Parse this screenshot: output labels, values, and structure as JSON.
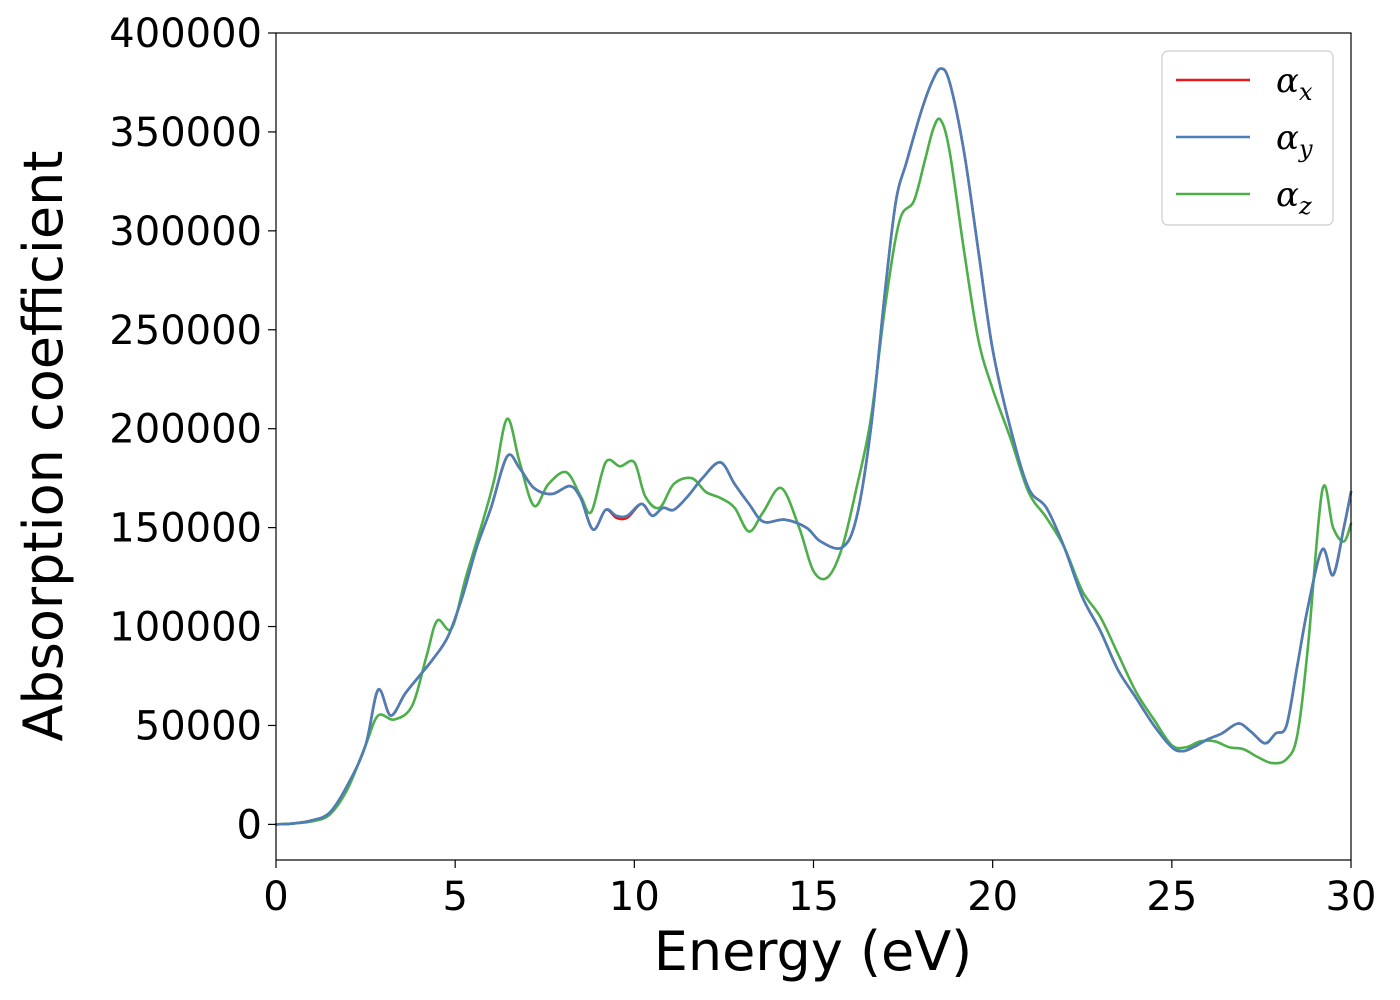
{
  "chart_data": {
    "type": "line",
    "xlabel": "Energy (eV)",
    "ylabel": "Absorption coefficient",
    "xlim": [
      0,
      30
    ],
    "ylim": [
      -18000,
      400000
    ],
    "xticks": [
      "0",
      "5",
      "10",
      "15",
      "20",
      "25",
      "30"
    ],
    "xtick_values": [
      0,
      5,
      10,
      15,
      20,
      25,
      30
    ],
    "yticks": [
      "0",
      "50000",
      "100000",
      "150000",
      "200000",
      "250000",
      "300000",
      "350000",
      "400000"
    ],
    "ytick_values": [
      0,
      50000,
      100000,
      150000,
      200000,
      250000,
      300000,
      350000,
      400000
    ],
    "grid": false,
    "legend_position": "top-right",
    "series": [
      {
        "name": "αx",
        "symbol": "α",
        "subscript": "x",
        "color": "#e41a1c",
        "x": [
          0,
          0.5,
          1,
          1.5,
          2,
          2.5,
          2.85,
          3.2,
          3.6,
          4,
          4.4,
          4.8,
          5.2,
          5.6,
          6,
          6.45,
          6.8,
          7.2,
          7.7,
          8.2,
          8.5,
          8.85,
          9.2,
          9.5,
          9.8,
          10.2,
          10.5,
          10.8,
          11.1,
          11.5,
          11.9,
          12.4,
          12.8,
          13.2,
          13.6,
          14.2,
          14.8,
          15.2,
          15.8,
          16.2,
          16.6,
          17,
          17.3,
          17.6,
          18,
          18.3,
          18.55,
          18.8,
          19.2,
          19.6,
          20,
          20.5,
          21,
          21.5,
          22,
          22.5,
          23,
          23.5,
          24,
          24.5,
          25,
          25.3,
          25.6,
          26,
          26.4,
          26.85,
          27.2,
          27.6,
          27.9,
          28.2,
          28.5,
          28.8,
          29.2,
          29.5,
          29.8,
          30
        ],
        "y": [
          0,
          500,
          2000,
          6000,
          20000,
          40000,
          68000,
          55000,
          66000,
          75000,
          84000,
          95000,
          115000,
          140000,
          160000,
          186000,
          180000,
          170000,
          167000,
          171000,
          165000,
          149000,
          159000,
          155000,
          155000,
          162000,
          156000,
          160000,
          159000,
          166000,
          175000,
          183000,
          172000,
          162000,
          153000,
          154000,
          150000,
          143000,
          140000,
          155000,
          200000,
          270000,
          315000,
          335000,
          360000,
          375000,
          382000,
          375000,
          340000,
          290000,
          240000,
          200000,
          170000,
          160000,
          140000,
          115000,
          98000,
          78000,
          64000,
          50000,
          39000,
          37000,
          39000,
          43000,
          46000,
          51000,
          47000,
          41000,
          46000,
          50000,
          80000,
          110000,
          139000,
          126000,
          150000,
          168000
        ]
      },
      {
        "name": "αy",
        "symbol": "α",
        "subscript": "y",
        "color": "#4a7fb8",
        "x": [
          0,
          0.5,
          1,
          1.5,
          2,
          2.5,
          2.85,
          3.2,
          3.6,
          4,
          4.4,
          4.8,
          5.2,
          5.6,
          6,
          6.45,
          6.8,
          7.2,
          7.7,
          8.2,
          8.5,
          8.85,
          9.2,
          9.5,
          9.8,
          10.2,
          10.5,
          10.8,
          11.1,
          11.5,
          11.9,
          12.4,
          12.8,
          13.2,
          13.6,
          14.2,
          14.8,
          15.2,
          15.8,
          16.2,
          16.6,
          17,
          17.3,
          17.6,
          18,
          18.3,
          18.55,
          18.8,
          19.2,
          19.6,
          20,
          20.5,
          21,
          21.5,
          22,
          22.5,
          23,
          23.5,
          24,
          24.5,
          25,
          25.3,
          25.6,
          26,
          26.4,
          26.85,
          27.2,
          27.6,
          27.9,
          28.2,
          28.5,
          28.8,
          29.2,
          29.5,
          29.8,
          30
        ],
        "y": [
          0,
          500,
          2000,
          6000,
          20000,
          40000,
          68000,
          55000,
          66000,
          75000,
          84000,
          95000,
          115000,
          140000,
          160000,
          186000,
          180000,
          170000,
          167000,
          171000,
          165000,
          149000,
          159000,
          156000,
          156000,
          162000,
          156000,
          160000,
          159000,
          166000,
          175000,
          183000,
          172000,
          162000,
          153000,
          154000,
          150000,
          143000,
          140000,
          155000,
          200000,
          270000,
          315000,
          335000,
          360000,
          375000,
          382000,
          375000,
          340000,
          290000,
          240000,
          200000,
          170000,
          160000,
          140000,
          115000,
          98000,
          78000,
          64000,
          50000,
          39000,
          37000,
          39000,
          43000,
          46000,
          51000,
          47000,
          41000,
          46000,
          50000,
          80000,
          110000,
          139000,
          126000,
          150000,
          168000
        ]
      },
      {
        "name": "αz",
        "symbol": "α",
        "subscript": "z",
        "color": "#4daf4a",
        "x": [
          0,
          0.5,
          1,
          1.5,
          2,
          2.5,
          2.85,
          3.3,
          3.8,
          4.2,
          4.5,
          4.9,
          5.3,
          5.8,
          6.1,
          6.45,
          6.8,
          7.2,
          7.6,
          8.1,
          8.5,
          8.8,
          9.2,
          9.6,
          10,
          10.3,
          10.7,
          11.1,
          11.6,
          12,
          12.4,
          12.8,
          13.2,
          13.6,
          14.1,
          14.6,
          15,
          15.4,
          15.8,
          16.2,
          16.6,
          17,
          17.4,
          17.8,
          18.1,
          18.35,
          18.55,
          18.8,
          19.2,
          19.6,
          20,
          20.5,
          21,
          21.5,
          22,
          22.5,
          23,
          23.5,
          24,
          24.5,
          25,
          25.4,
          25.8,
          26.2,
          26.6,
          27,
          27.4,
          27.8,
          28.2,
          28.5,
          28.8,
          29.2,
          29.5,
          29.8,
          30
        ],
        "y": [
          0,
          500,
          1500,
          5000,
          18000,
          40000,
          55000,
          53000,
          60000,
          85000,
          103000,
          99000,
          125000,
          155000,
          175000,
          205000,
          183000,
          161000,
          172000,
          178000,
          166000,
          158000,
          183000,
          181000,
          183000,
          166000,
          160000,
          172000,
          175000,
          168000,
          165000,
          160000,
          148000,
          158000,
          170000,
          150000,
          128000,
          125000,
          140000,
          170000,
          205000,
          262000,
          305000,
          315000,
          335000,
          352000,
          356000,
          340000,
          290000,
          245000,
          220000,
          195000,
          168000,
          155000,
          140000,
          118000,
          105000,
          86000,
          67000,
          53000,
          40000,
          39000,
          42000,
          42000,
          39000,
          38000,
          34000,
          31000,
          33000,
          45000,
          90000,
          169000,
          150000,
          143000,
          152000
        ]
      }
    ]
  }
}
